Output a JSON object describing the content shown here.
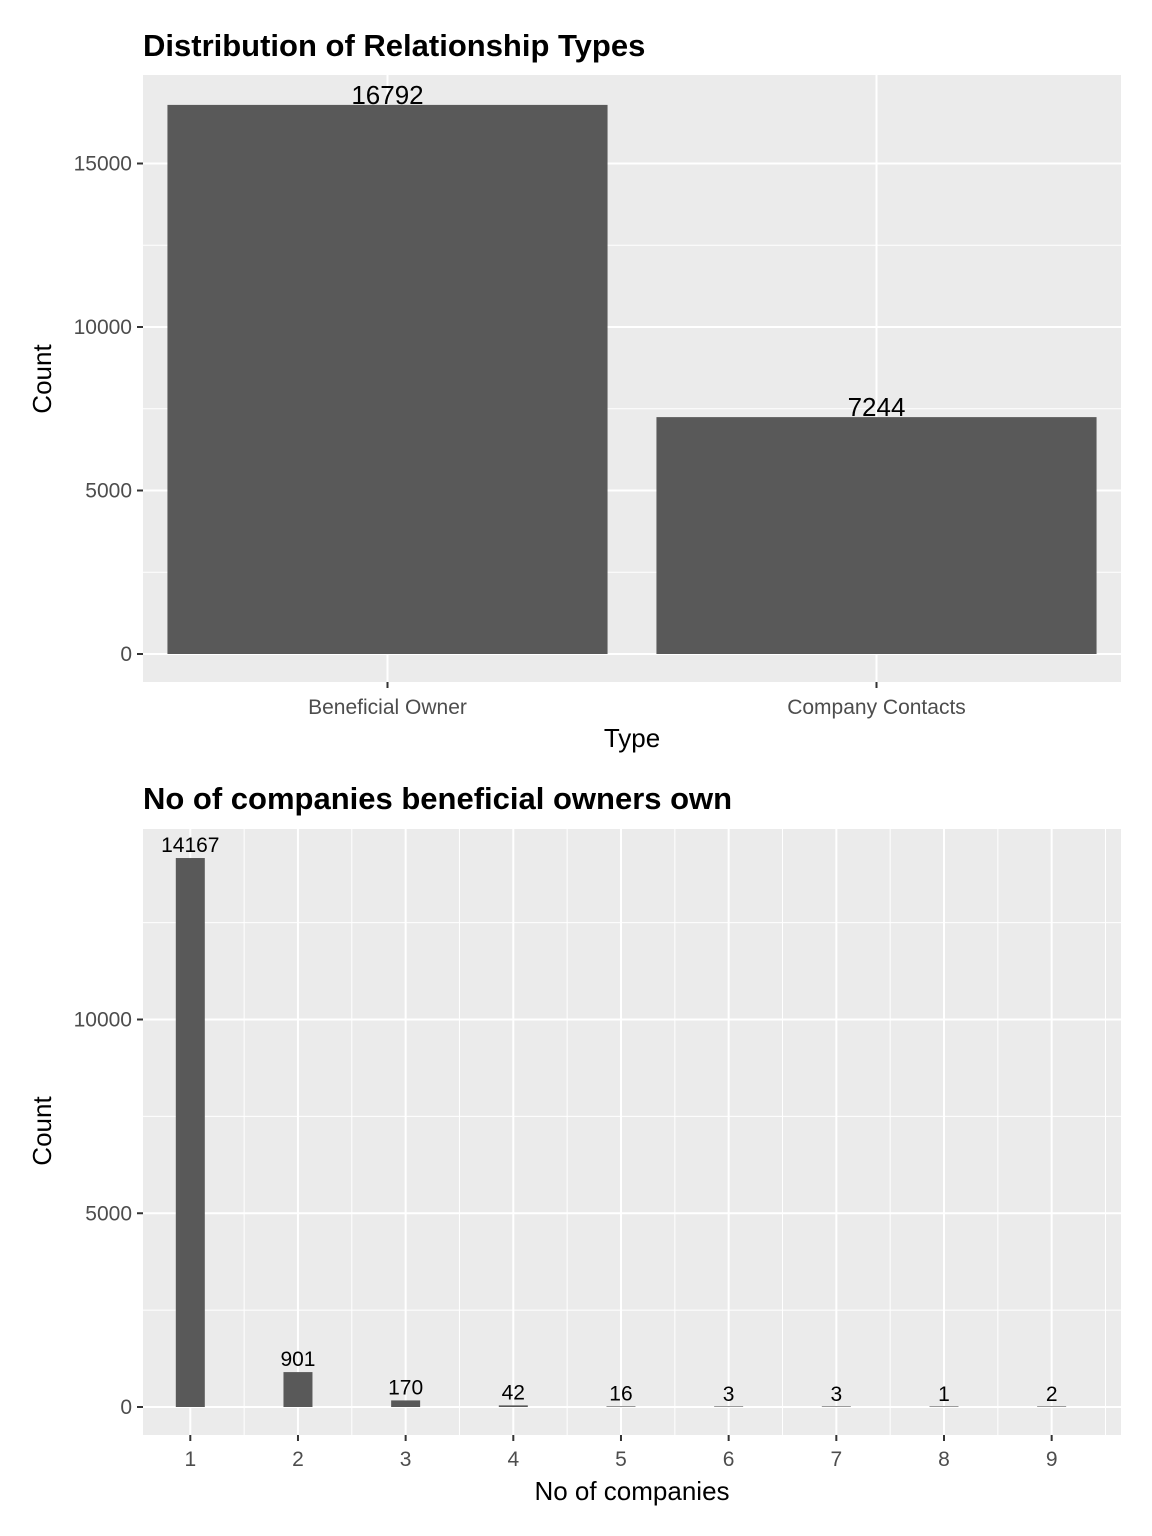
{
  "chart_data": [
    {
      "type": "bar",
      "title": "Distribution of Relationship Types",
      "xlabel": "Type",
      "ylabel": "Count",
      "categories": [
        "Beneficial Owner",
        "Company Contacts"
      ],
      "values": [
        16792,
        7244
      ],
      "data_labels": [
        "16792",
        "7244"
      ],
      "ylim": [
        0,
        17000
      ],
      "yticks": [
        0,
        5000,
        10000,
        15000
      ],
      "ytick_labels": [
        "0",
        "5000",
        "10000",
        "15000"
      ],
      "grid": true,
      "bar_color": "#595959",
      "panel_color": "#ebebeb"
    },
    {
      "type": "bar",
      "title": "No of companies beneficial owners own",
      "xlabel": "No of companies",
      "ylabel": "Count",
      "x": [
        1,
        2,
        3,
        4,
        5,
        6,
        7,
        8,
        9
      ],
      "values": [
        14167,
        901,
        170,
        42,
        16,
        3,
        3,
        1,
        2
      ],
      "data_labels": [
        "14167",
        "901",
        "170",
        "42",
        "16",
        "3",
        "3",
        "1",
        "2"
      ],
      "xtick_labels": [
        "1",
        "2",
        "3",
        "4",
        "5",
        "6",
        "7",
        "8",
        "9"
      ],
      "ylim": [
        0,
        14700
      ],
      "yticks": [
        0,
        5000,
        10000
      ],
      "ytick_labels": [
        "0",
        "5000",
        "10000"
      ],
      "grid": true,
      "bar_color": "#595959",
      "panel_color": "#ebebeb"
    }
  ]
}
